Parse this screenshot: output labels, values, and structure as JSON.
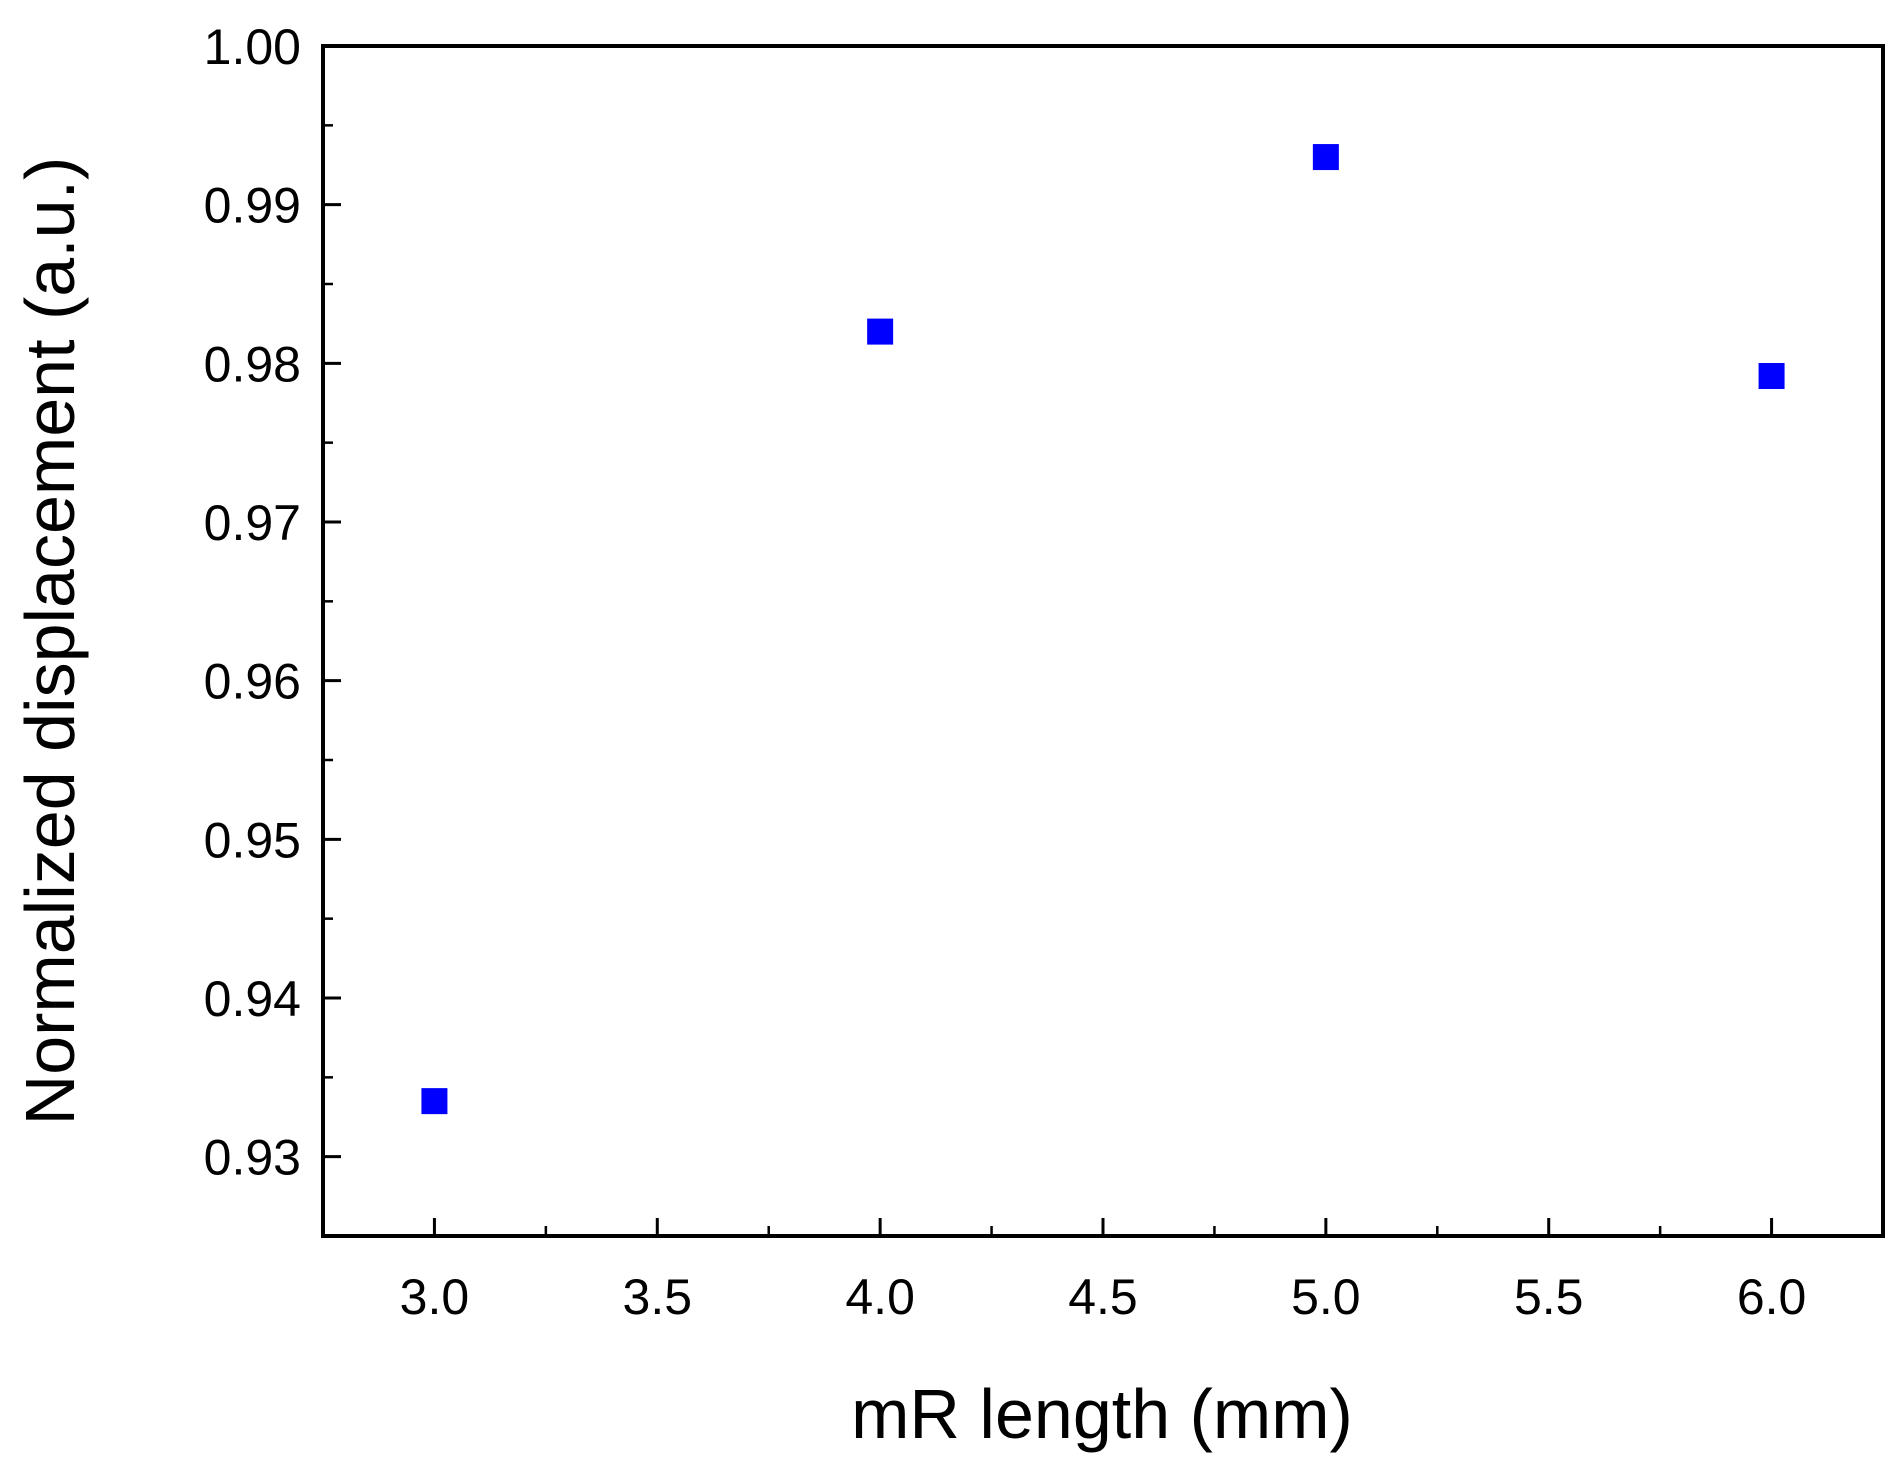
{
  "chart_data": {
    "type": "scatter",
    "xlabel": "mR length (mm)",
    "ylabel": "Normalized displacement (a.u.)",
    "xlim": [
      2.75,
      6.25
    ],
    "ylim": [
      0.925,
      1.0
    ],
    "xticks": [
      3.0,
      3.5,
      4.0,
      4.5,
      5.0,
      5.5,
      6.0
    ],
    "xtick_labels": [
      "3.0",
      "3.5",
      "4.0",
      "4.5",
      "5.0",
      "5.5",
      "6.0"
    ],
    "yticks": [
      0.93,
      0.94,
      0.95,
      0.96,
      0.97,
      0.98,
      0.99,
      1.0
    ],
    "ytick_labels": [
      "0.93",
      "0.94",
      "0.95",
      "0.96",
      "0.97",
      "0.98",
      "0.99",
      "1.00"
    ],
    "grid": false,
    "marker": "square",
    "marker_color": "#0000ff",
    "series": [
      {
        "x": [
          3.0,
          4.0,
          5.0,
          6.0
        ],
        "y": [
          0.9335,
          0.982,
          0.993,
          0.9792
        ]
      }
    ]
  }
}
